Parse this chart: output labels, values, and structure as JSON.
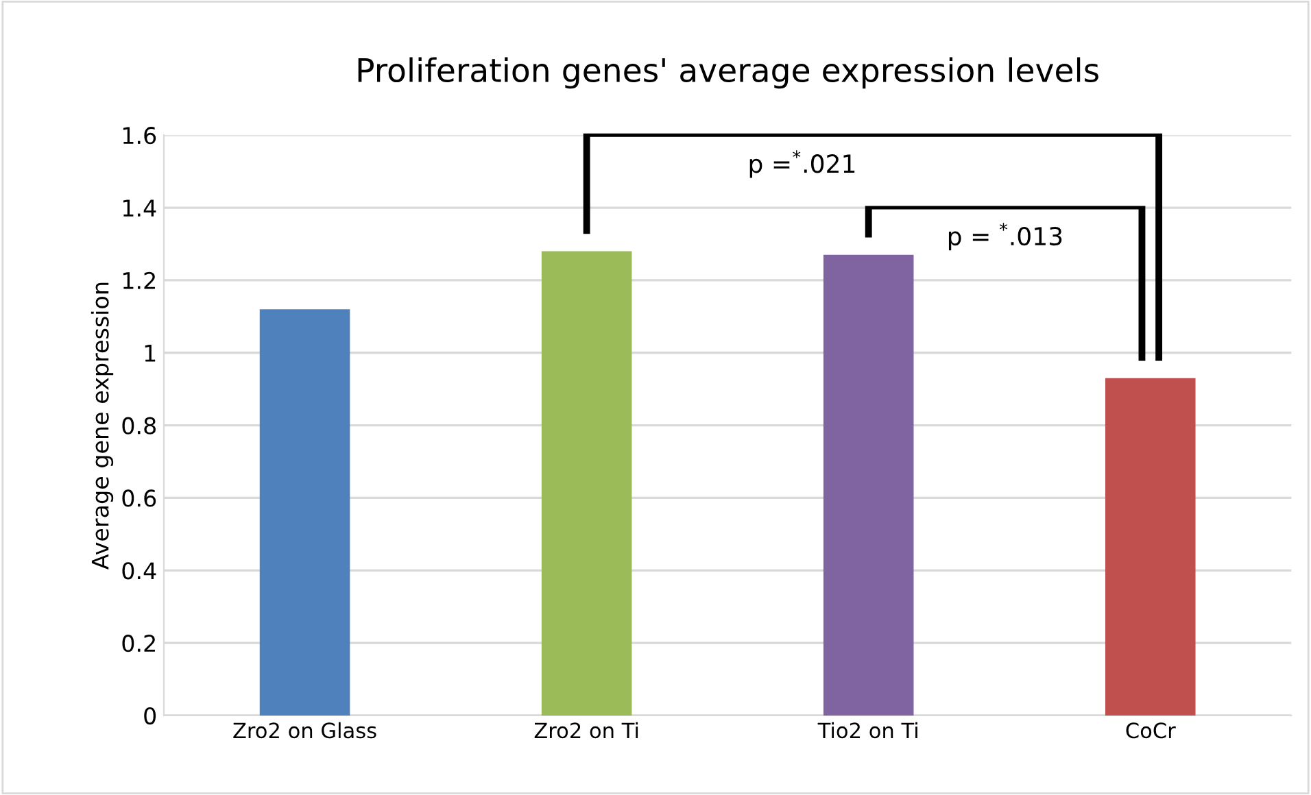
{
  "chart_data": {
    "type": "bar",
    "title": "Proliferation genes' average expression levels",
    "ylabel": "Average gene expression",
    "categories": [
      "Zro2 on Glass",
      "Zro2 on Ti",
      "Tio2 on Ti",
      "CoCr"
    ],
    "values": [
      1.12,
      1.28,
      1.27,
      0.93
    ],
    "colors": [
      "#4f81bd",
      "#9bbb59",
      "#8064a2",
      "#c0504d"
    ],
    "ylim": [
      0,
      1.6
    ],
    "yticks": [
      0,
      0.2,
      0.4,
      0.6,
      0.8,
      1,
      1.2,
      1.4,
      1.6
    ],
    "grid": "y",
    "annotations": [
      "p =$^{*}$.021",
      "p = $^{*}$.013"
    ]
  }
}
